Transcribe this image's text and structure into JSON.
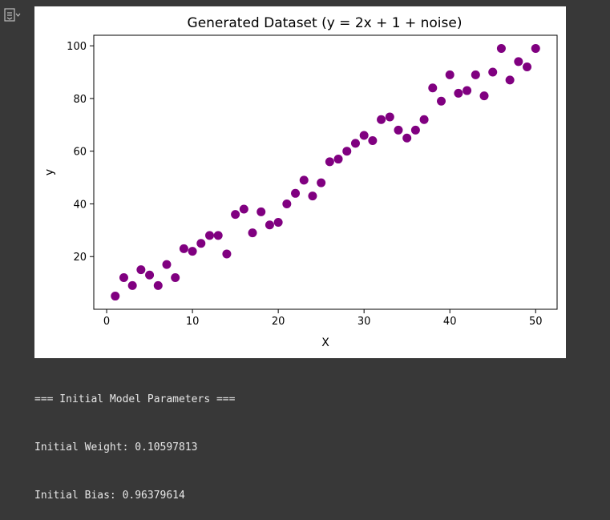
{
  "cell": {
    "output_toggle_icon": "output-collapse-icon"
  },
  "chart_data": {
    "type": "scatter",
    "title": "Generated Dataset (y = 2x + 1 + noise)",
    "xlabel": "X",
    "ylabel": "y",
    "xlim": [
      -1.5,
      52.5
    ],
    "ylim": [
      0,
      104
    ],
    "xticks": [
      0,
      10,
      20,
      30,
      40,
      50
    ],
    "yticks": [
      20,
      40,
      60,
      80,
      100
    ],
    "grid": false,
    "marker_color": "#800080",
    "x": [
      1,
      2,
      3,
      4,
      5,
      6,
      7,
      8,
      9,
      10,
      11,
      12,
      13,
      14,
      15,
      16,
      17,
      18,
      19,
      20,
      21,
      22,
      23,
      24,
      25,
      26,
      27,
      28,
      29,
      30,
      31,
      32,
      33,
      34,
      35,
      36,
      37,
      38,
      39,
      40,
      41,
      42,
      43,
      44,
      45,
      46,
      47,
      48,
      49,
      50
    ],
    "y": [
      5,
      12,
      9,
      15,
      13,
      9,
      17,
      12,
      23,
      22,
      25,
      28,
      28,
      21,
      36,
      38,
      29,
      37,
      32,
      33,
      40,
      44,
      49,
      43,
      48,
      56,
      57,
      60,
      63,
      66,
      64,
      72,
      73,
      68,
      65,
      68,
      72,
      84,
      79,
      89,
      82,
      83,
      89,
      81,
      90,
      99,
      87,
      94,
      92,
      99
    ]
  },
  "output": {
    "lines": [
      "=== Initial Model Parameters ===",
      "Initial Weight: 0.10597813",
      "Initial Bias: 0.96379614"
    ]
  }
}
